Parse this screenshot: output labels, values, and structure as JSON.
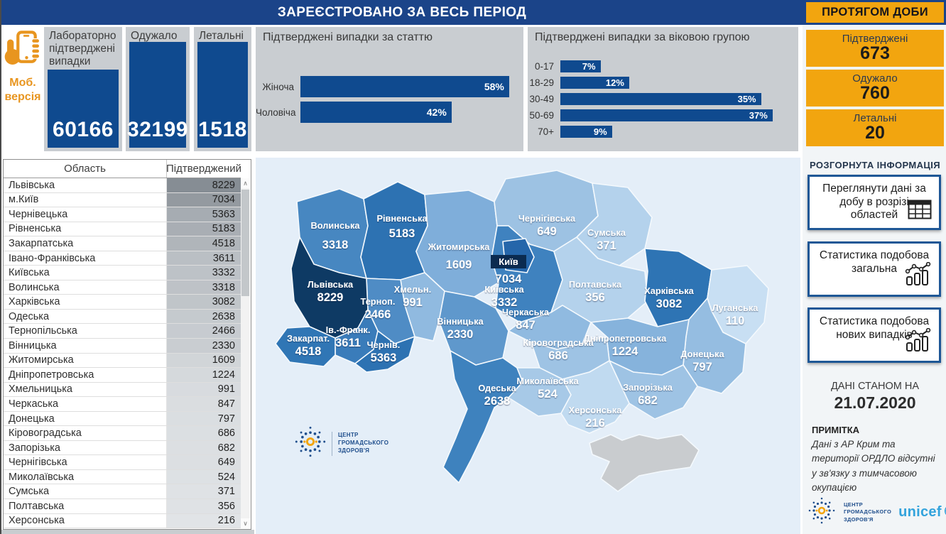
{
  "header": {
    "title": "ЗАРЕЄСТРОВАНО ЗА ВЕСЬ ПЕРІОД",
    "daily_title": "ПРОТЯГОМ ДОБИ"
  },
  "mobile": {
    "label_line1": "Моб.",
    "label_line2": "версія"
  },
  "kpi_cards": [
    {
      "title": "Лабораторно підтверджені випадки",
      "value": "60166"
    },
    {
      "title": "Одужало",
      "value": "32199"
    },
    {
      "title": "Летальні",
      "value": "1518"
    }
  ],
  "daily_cards": [
    {
      "label": "Підтверджені",
      "value": "673"
    },
    {
      "label": "Одужало",
      "value": "760"
    },
    {
      "label": "Летальні",
      "value": "20"
    }
  ],
  "chart_data": [
    {
      "type": "bar",
      "orientation": "horizontal",
      "title": "Підтверджені випадки за статтю",
      "categories": [
        "Жіноча",
        "Чоловіча"
      ],
      "values": [
        58,
        42
      ],
      "unit": "%",
      "xlim": [
        0,
        60
      ],
      "bar_color": "#0F4A8F",
      "grid": false,
      "value_labels": "inside-end"
    },
    {
      "type": "bar",
      "orientation": "horizontal",
      "title": "Підтверджені випадки за віковою групою",
      "categories": [
        "0-17",
        "18-29",
        "30-49",
        "50-69",
        "70+"
      ],
      "values": [
        7,
        12,
        35,
        37,
        9
      ],
      "unit": "%",
      "xlim": [
        0,
        40
      ],
      "bar_color": "#0F4A8F",
      "grid": false,
      "value_labels": "inside-end"
    }
  ],
  "table": {
    "columns": [
      "Область",
      "Підтверджений"
    ],
    "rows": [
      [
        "Львівська",
        8229
      ],
      [
        "м.Київ",
        7034
      ],
      [
        "Чернівецька",
        5363
      ],
      [
        "Рівненська",
        5183
      ],
      [
        "Закарпатська",
        4518
      ],
      [
        "Івано-Франківська",
        3611
      ],
      [
        "Київська",
        3332
      ],
      [
        "Волинська",
        3318
      ],
      [
        "Харківська",
        3082
      ],
      [
        "Одеська",
        2638
      ],
      [
        "Тернопільська",
        2466
      ],
      [
        "Вінницька",
        2330
      ],
      [
        "Житомирська",
        1609
      ],
      [
        "Дніпропетровська",
        1224
      ],
      [
        "Хмельницька",
        991
      ],
      [
        "Черкаська",
        847
      ],
      [
        "Донецька",
        797
      ],
      [
        "Кіровоградська",
        686
      ],
      [
        "Запорізька",
        682
      ],
      [
        "Чернігівська",
        649
      ],
      [
        "Миколаївська",
        524
      ],
      [
        "Сумська",
        371
      ],
      [
        "Полтавська",
        356
      ],
      [
        "Херсонська",
        216
      ]
    ],
    "shade_min_value": 110,
    "shade_max_value": 8229,
    "shade_light": "#E2E5E8",
    "shade_dark": "#868D94"
  },
  "map": {
    "regions": [
      {
        "id": "volyn",
        "name": "Волинська",
        "value": "3318",
        "color": "#4787C1"
      },
      {
        "id": "rivne",
        "name": "Рівненська",
        "value": "5183",
        "color": "#2D72B2"
      },
      {
        "id": "zhytomyr",
        "name": "Житомирська",
        "value": "1609",
        "color": "#7FAEDA"
      },
      {
        "id": "chernihiv",
        "name": "Чернігівська",
        "value": "649",
        "color": "#9DC2E3"
      },
      {
        "id": "sumy",
        "name": "Сумська",
        "value": "371",
        "color": "#B4D2EC"
      },
      {
        "id": "kyiv_obl",
        "name": "Київська",
        "value": "3332",
        "color": "#3F82BF"
      },
      {
        "id": "kyiv_city",
        "name": "Київ",
        "value": "7034",
        "color": "#2566AA",
        "badge": true
      },
      {
        "id": "poltava",
        "name": "Полтавська",
        "value": "356",
        "color": "#B4D2EC"
      },
      {
        "id": "kharkiv",
        "name": "Харківська",
        "value": "3082",
        "color": "#2E74B4"
      },
      {
        "id": "luhansk",
        "name": "Луганська",
        "value": "110",
        "color": "#C8DFF3"
      },
      {
        "id": "donetsk",
        "name": "Донецька",
        "value": "797",
        "color": "#95BDE1"
      },
      {
        "id": "dnipro",
        "name": "Дніпропетровська",
        "value": "1224",
        "color": "#86B3DC"
      },
      {
        "id": "zaporizhzhia",
        "name": "Запорізька",
        "value": "682",
        "color": "#9EC3E4"
      },
      {
        "id": "cherkasy",
        "name": "Черкаська",
        "value": "847",
        "color": "#90BAE0"
      },
      {
        "id": "kirovohrad",
        "name": "Кіровоградська",
        "value": "686",
        "color": "#9EC3E4"
      },
      {
        "id": "vinnytsia",
        "name": "Вінницька",
        "value": "2330",
        "color": "#5F98CC"
      },
      {
        "id": "khmelnytskyi",
        "name": "Хмельн.",
        "value": "991",
        "color": "#90BAE0"
      },
      {
        "id": "ternopil",
        "name": "Терноп.",
        "value": "2466",
        "color": "#4F8CC5"
      },
      {
        "id": "lviv",
        "name": "Львівська",
        "value": "8229",
        "color": "#0E3A64"
      },
      {
        "id": "ivano",
        "name": "Ів.-Франк.",
        "value": "3611",
        "color": "#3A7CBA"
      },
      {
        "id": "zakarpattia",
        "name": "Закарпат.",
        "value": "4518",
        "color": "#3076B5"
      },
      {
        "id": "chernivtsi",
        "name": "Чернів.",
        "value": "5363",
        "color": "#2D72B2"
      },
      {
        "id": "odesa",
        "name": "Одеська",
        "value": "2638",
        "color": "#3E82BE"
      },
      {
        "id": "mykolaiv",
        "name": "Миколаївська",
        "value": "524",
        "color": "#A7C9E7"
      },
      {
        "id": "kherson",
        "name": "Херсонська",
        "value": "216",
        "color": "#C0DAF0"
      },
      {
        "id": "crimea",
        "name": "",
        "value": "",
        "color": "#C9CCCF"
      }
    ],
    "no_data_color": "#C9CCCF"
  },
  "info_panel": {
    "heading": "РОЗГОРНУТА ІНФОРМАЦІЯ",
    "buttons": [
      {
        "label": "Переглянути дані за добу в розрізі областей",
        "icon": "table-icon"
      },
      {
        "label": "Статистика подобова загальна",
        "icon": "line-chart-icon"
      },
      {
        "label": "Статистика подобова нових випадків",
        "icon": "line-chart-icon"
      }
    ],
    "date_caption": "ДАНІ СТАНОМ НА",
    "date": "21.07.2020",
    "note_title": "ПРИМІТКА",
    "note": "Дані з АР Крим та території ОРДЛО відсутні у зв'язку з тимчасовою окупацією"
  },
  "branding": {
    "phc_name_lines": [
      "ЦЕНТР",
      "ГРОМАДСЬКОГО",
      "ЗДОРОВ'Я"
    ],
    "unicef": "unicef"
  },
  "colors": {
    "primary": "#0F4A8F",
    "header": "#1B4489",
    "accent_orange": "#F2A50F",
    "card_gray": "#C9CDD1",
    "panel_bg": "#F2F5F7",
    "map_bg": "#E4EEF8",
    "crimea_gray": "#C9CCCF",
    "brand_blue": "#1F4E8C",
    "unicef_blue": "#33A3DC"
  }
}
